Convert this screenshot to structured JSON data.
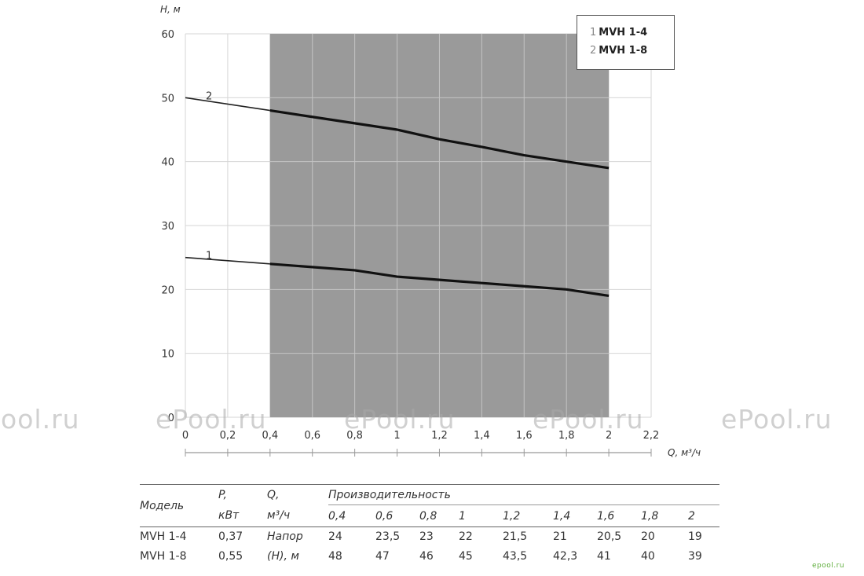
{
  "chart_data": {
    "type": "line",
    "ylabel": "H, м",
    "xlabel": "Q, м³/ч",
    "ylim": [
      0,
      60
    ],
    "xlim": [
      0,
      2.2
    ],
    "y_ticks": [
      "60",
      "50",
      "40",
      "30",
      "20",
      "10",
      "0"
    ],
    "x_ticks": [
      "0",
      "0,2",
      "0,4",
      "0,6",
      "0,8",
      "1",
      "1,2",
      "1,4",
      "1,6",
      "1,8",
      "2",
      "2,2"
    ],
    "shaded_x_range": [
      0.4,
      2.0
    ],
    "grid": true,
    "legend_position": "top-right",
    "series": [
      {
        "name": "MVH 1-4",
        "label": "1",
        "x": [
          0,
          0.4,
          0.6,
          0.8,
          1.0,
          1.2,
          1.4,
          1.6,
          1.8,
          2.0
        ],
        "y": [
          25,
          24,
          23.5,
          23,
          22,
          21.5,
          21,
          20.5,
          20,
          19
        ]
      },
      {
        "name": "MVH 1-8",
        "label": "2",
        "x": [
          0,
          0.4,
          0.6,
          0.8,
          1.0,
          1.2,
          1.4,
          1.6,
          1.8,
          2.0
        ],
        "y": [
          50,
          48,
          47,
          46,
          45,
          43.5,
          42.3,
          41,
          40,
          39
        ]
      }
    ]
  },
  "legend": [
    {
      "num": "1",
      "name": "MVH 1-4"
    },
    {
      "num": "2",
      "name": "MVH 1-8"
    }
  ],
  "watermark": "ePool.ru",
  "corner_logo": "epool.ru",
  "table": {
    "col_model": "Модель",
    "col_power": "P,",
    "col_power_unit": "кВт",
    "col_flow": "Q,",
    "col_flow_unit": "м³/ч",
    "col_perf": "Производительность",
    "flows": [
      "0,4",
      "0,6",
      "0,8",
      "1",
      "1,2",
      "1,4",
      "1,6",
      "1,8",
      "2"
    ],
    "head_label_1": "Напор",
    "head_label_2": "(Н), м",
    "rows": [
      {
        "model": "MVH 1-4",
        "power": "0,37",
        "values": [
          "24",
          "23,5",
          "23",
          "22",
          "21,5",
          "21",
          "20,5",
          "20",
          "19"
        ]
      },
      {
        "model": "MVH 1-8",
        "power": "0,55",
        "values": [
          "48",
          "47",
          "46",
          "45",
          "43,5",
          "42,3",
          "41",
          "40",
          "39"
        ]
      }
    ]
  }
}
